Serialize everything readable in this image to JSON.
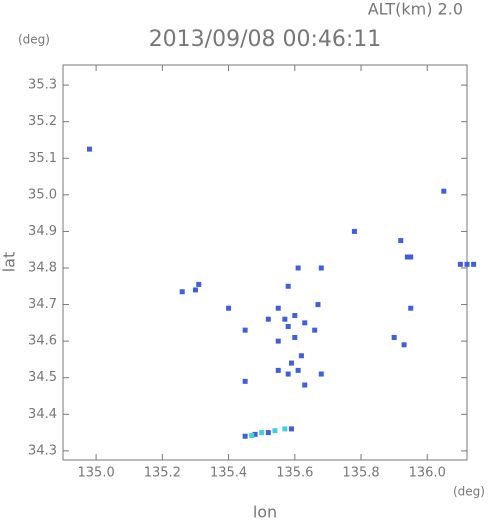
{
  "chart_data": {
    "type": "scatter",
    "title": "2013/09/08 00:46:11",
    "subtitle": "ALT(km) 2.0",
    "x_label": "lon",
    "y_label": "lat",
    "x_unit": "(deg)",
    "y_unit": "(deg)",
    "xlim": [
      134.9,
      136.12
    ],
    "ylim": [
      34.275,
      35.355
    ],
    "xticks": [
      {
        "value": 135,
        "label": "135.0"
      },
      135.2,
      135.4,
      135.6,
      135.8,
      {
        "value": 136,
        "label": "136.0"
      }
    ],
    "yticks": [
      34.3,
      34.4,
      34.5,
      34.6,
      34.7,
      34.8,
      34.9,
      {
        "value": 35,
        "label": "35.0"
      },
      35.1,
      35.2,
      35.3
    ],
    "series": [
      {
        "color": "#3f5fe0",
        "x": [
          134.98,
          136.05,
          135.78,
          135.92,
          135.94,
          135.95,
          136.1,
          136.12,
          136.14,
          135.61,
          135.68,
          135.26,
          135.31,
          135.3,
          135.58,
          135.4,
          135.55,
          135.67,
          135.95,
          135.52,
          135.57,
          135.6,
          135.63,
          135.45,
          135.58,
          135.66,
          135.9,
          135.55,
          135.6,
          135.93,
          135.62,
          135.59,
          135.55,
          135.58,
          135.61,
          135.68,
          135.63,
          135.45,
          135.45,
          135.48,
          135.52,
          135.59
        ],
        "values": [
          35.125,
          35.01,
          34.9,
          34.875,
          34.83,
          34.83,
          34.81,
          34.81,
          34.81,
          34.8,
          34.8,
          34.735,
          34.755,
          34.74,
          34.75,
          34.69,
          34.69,
          34.7,
          34.69,
          34.66,
          34.66,
          34.67,
          34.65,
          34.63,
          34.64,
          34.63,
          34.61,
          34.6,
          34.61,
          34.59,
          34.56,
          34.54,
          34.52,
          34.51,
          34.52,
          34.51,
          34.48,
          34.49,
          34.34,
          34.345,
          34.35,
          34.36
        ]
      },
      {
        "color": "#40d0e0",
        "x": [
          135.47,
          135.5,
          135.54,
          135.57
        ],
        "values": [
          34.342,
          34.35,
          34.355,
          34.36
        ]
      }
    ]
  }
}
